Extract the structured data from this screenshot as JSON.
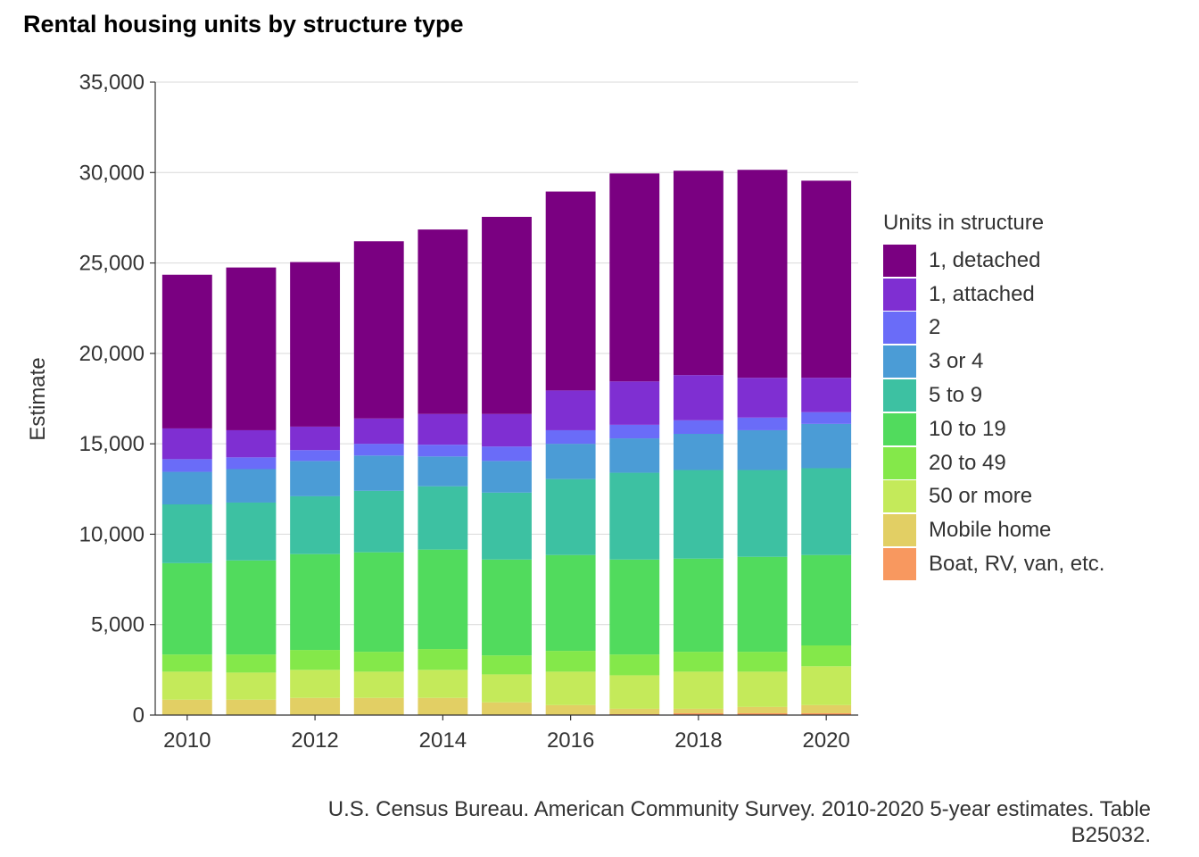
{
  "chart_data": {
    "type": "bar",
    "stacked": true,
    "title": "Rental housing units by structure type",
    "xlabel": "",
    "ylabel": "Estimate",
    "ylim": [
      0,
      35000
    ],
    "yticks": [
      "0",
      "5,000",
      "10,000",
      "15,000",
      "20,000",
      "25,000",
      "30,000",
      "35,000"
    ],
    "ytick_values": [
      0,
      5000,
      10000,
      15000,
      20000,
      25000,
      30000,
      35000
    ],
    "xticks": [
      "2010",
      "2012",
      "2014",
      "2016",
      "2018",
      "2020"
    ],
    "categories": [
      "2010",
      "2011",
      "2012",
      "2013",
      "2014",
      "2015",
      "2016",
      "2017",
      "2018",
      "2019",
      "2020"
    ],
    "grid": true,
    "legend_title": "Units in structure",
    "legend_position": "right",
    "series": [
      {
        "name": "1, detached",
        "color": "#7A0081",
        "values": [
          8500,
          9000,
          9100,
          9800,
          10200,
          10900,
          11000,
          11500,
          11300,
          11500,
          10900
        ]
      },
      {
        "name": "1, attached",
        "color": "#7F2FD2",
        "values": [
          1700,
          1500,
          1300,
          1400,
          1700,
          1800,
          2200,
          2400,
          2500,
          2200,
          1900
        ]
      },
      {
        "name": "2",
        "color": "#6A6CF8",
        "values": [
          700,
          650,
          600,
          650,
          650,
          800,
          750,
          750,
          750,
          700,
          650
        ]
      },
      {
        "name": "3 or 4",
        "color": "#4B9CD6",
        "values": [
          1800,
          1850,
          1950,
          1950,
          1650,
          1750,
          1950,
          1900,
          2000,
          2200,
          2450
        ]
      },
      {
        "name": "5 to 9",
        "color": "#3DC1A2",
        "values": [
          3250,
          3200,
          3200,
          3400,
          3500,
          3700,
          4200,
          4800,
          4900,
          4800,
          4800
        ]
      },
      {
        "name": "10 to 19",
        "color": "#51DB5D",
        "values": [
          5050,
          5200,
          5300,
          5500,
          5500,
          5300,
          5300,
          5250,
          5150,
          5250,
          5000
        ]
      },
      {
        "name": "20 to 49",
        "color": "#84E84A",
        "values": [
          950,
          1000,
          1100,
          1100,
          1150,
          1050,
          1150,
          1150,
          1100,
          1100,
          1150
        ]
      },
      {
        "name": "50 or more",
        "color": "#C4EA5A",
        "values": [
          1550,
          1500,
          1550,
          1450,
          1550,
          1550,
          1850,
          1850,
          2050,
          1950,
          2150
        ]
      },
      {
        "name": "Mobile home",
        "color": "#E2CF64",
        "values": [
          850,
          850,
          950,
          950,
          950,
          700,
          550,
          300,
          250,
          350,
          450
        ]
      },
      {
        "name": "Boat, RV, van, etc.",
        "color": "#F8985F",
        "values": [
          0,
          0,
          0,
          0,
          0,
          0,
          0,
          50,
          100,
          100,
          100
        ]
      }
    ]
  },
  "caption": {
    "line1": "U.S. Census Bureau. American Community Survey. 2010-2020 5-year estimates. Table",
    "line2": "B25032."
  }
}
